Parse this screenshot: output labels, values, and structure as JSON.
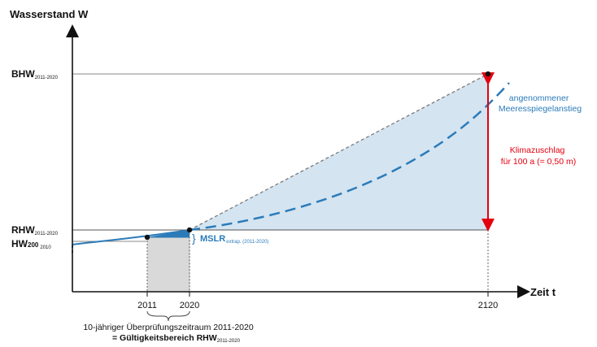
{
  "y_axis_title": "Wasserstand  W",
  "x_axis_title": "Zeit t",
  "levels": {
    "bhw": {
      "main": "BHW",
      "sub": "2011-2020"
    },
    "rhw": {
      "main": "RHW",
      "sub": "2011-2020"
    },
    "hw200": {
      "main": "HW",
      "main2": "200",
      "sub": "2010"
    }
  },
  "x_ticks": [
    "2011",
    "2020",
    "2120"
  ],
  "mslr": {
    "main": "MSLR",
    "sub": "extrap. (2011-2020)"
  },
  "sea_level_label": [
    "angenommener",
    "Meeresspiegelanstieg"
  ],
  "climate_label": [
    "Klimazuschlag",
    "für 100 a (= 0,50 m)"
  ],
  "review_period": {
    "line1": "10-jähriger Überprüfungszeitraum 2011-2020",
    "line2_prefix": "= Gültigkeitsbereich RHW",
    "line2_sub": "2011-2020"
  },
  "colors": {
    "accent_blue": "#2b7bb9",
    "fill_blue": "#d4e4f1",
    "gray_box": "#d9d9d9",
    "arrow_red": "#e3000f"
  }
}
